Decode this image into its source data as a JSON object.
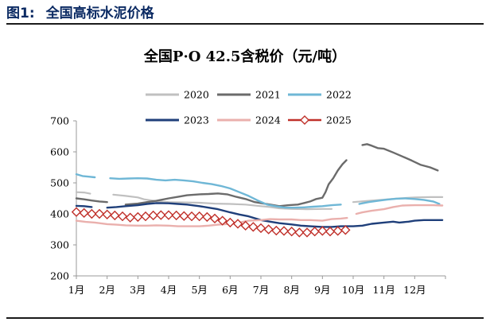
{
  "figure": {
    "number": "图1:",
    "caption": "全国高标水泥价格"
  },
  "chart_data": {
    "type": "line",
    "title": "全国P·O 42.5含税价（元/吨）",
    "xlabel": "",
    "ylabel": "",
    "ylim": [
      200,
      700
    ],
    "yticks": [
      200,
      300,
      400,
      500,
      600,
      700
    ],
    "xlim": [
      1,
      13
    ],
    "xticks": [
      {
        "label": "1月",
        "x": 1
      },
      {
        "label": "2月",
        "x": 2
      },
      {
        "label": "3月",
        "x": 3
      },
      {
        "label": "4月",
        "x": 4
      },
      {
        "label": "5月",
        "x": 5
      },
      {
        "label": "6月",
        "x": 6
      },
      {
        "label": "7月",
        "x": 7
      },
      {
        "label": "8月",
        "x": 8
      },
      {
        "label": "9月",
        "x": 9
      },
      {
        "label": "10月",
        "x": 10
      },
      {
        "label": "11月",
        "x": 11
      },
      {
        "label": "12月",
        "x": 12
      }
    ],
    "grid": false,
    "legend_position": "top",
    "series": [
      {
        "name": "2020",
        "color": "#c0c0c0",
        "width": 2.2,
        "marker": "none",
        "points": [
          [
            1.0,
            470
          ],
          [
            1.25,
            469
          ],
          [
            1.45,
            465
          ],
          [
            null,
            null
          ],
          [
            2.2,
            462
          ],
          [
            2.6,
            458
          ],
          [
            3.0,
            453
          ],
          [
            3.2,
            447
          ],
          [
            3.6,
            441
          ],
          [
            4.0,
            438
          ],
          [
            4.5,
            437
          ],
          [
            5.0,
            436
          ],
          [
            5.5,
            433
          ],
          [
            6.0,
            432
          ],
          [
            6.5,
            430
          ],
          [
            7.0,
            425
          ],
          [
            7.3,
            422
          ],
          [
            7.6,
            418
          ],
          [
            8.0,
            416
          ],
          [
            8.5,
            415
          ],
          [
            9.0,
            416
          ],
          [
            9.3,
            416
          ],
          [
            null,
            null
          ],
          [
            10.0,
            438
          ],
          [
            10.5,
            442
          ],
          [
            11.0,
            446
          ],
          [
            11.5,
            450
          ],
          [
            12.0,
            453
          ],
          [
            12.5,
            454
          ],
          [
            12.9,
            454
          ]
        ]
      },
      {
        "name": "2021",
        "color": "#6b6b6b",
        "width": 2.4,
        "marker": "none",
        "points": [
          [
            1.0,
            450
          ],
          [
            1.25,
            447
          ],
          [
            1.5,
            443
          ],
          [
            1.75,
            440
          ],
          [
            2.0,
            438
          ],
          [
            null,
            null
          ],
          [
            2.6,
            430
          ],
          [
            3.0,
            433
          ],
          [
            3.3,
            438
          ],
          [
            3.6,
            442
          ],
          [
            4.0,
            450
          ],
          [
            4.3,
            455
          ],
          [
            4.6,
            460
          ],
          [
            5.0,
            463
          ],
          [
            5.3,
            464
          ],
          [
            5.6,
            466
          ],
          [
            5.9,
            463
          ],
          [
            6.2,
            455
          ],
          [
            6.5,
            448
          ],
          [
            6.8,
            438
          ],
          [
            7.0,
            435
          ],
          [
            7.3,
            430
          ],
          [
            7.6,
            425
          ],
          [
            7.9,
            428
          ],
          [
            8.2,
            430
          ],
          [
            8.4,
            435
          ],
          [
            8.6,
            440
          ],
          [
            8.8,
            448
          ],
          [
            9.0,
            452
          ],
          [
            9.1,
            470
          ],
          [
            9.2,
            495
          ],
          [
            9.35,
            515
          ],
          [
            9.5,
            540
          ],
          [
            9.65,
            560
          ],
          [
            9.78,
            573
          ],
          [
            null,
            null
          ],
          [
            10.3,
            622
          ],
          [
            10.45,
            625
          ],
          [
            10.6,
            620
          ],
          [
            10.8,
            612
          ],
          [
            11.0,
            610
          ],
          [
            11.3,
            598
          ],
          [
            11.6,
            585
          ],
          [
            11.9,
            572
          ],
          [
            12.2,
            558
          ],
          [
            12.5,
            550
          ],
          [
            12.75,
            540
          ]
        ]
      },
      {
        "name": "2022",
        "color": "#6fb7d6",
        "width": 2.4,
        "marker": "none",
        "points": [
          [
            1.0,
            528
          ],
          [
            1.2,
            522
          ],
          [
            1.4,
            520
          ],
          [
            1.6,
            518
          ],
          [
            null,
            null
          ],
          [
            2.1,
            515
          ],
          [
            2.4,
            513
          ],
          [
            2.7,
            514
          ],
          [
            3.0,
            515
          ],
          [
            3.3,
            514
          ],
          [
            3.6,
            510
          ],
          [
            3.9,
            508
          ],
          [
            4.2,
            510
          ],
          [
            4.5,
            508
          ],
          [
            4.8,
            505
          ],
          [
            5.1,
            500
          ],
          [
            5.4,
            496
          ],
          [
            5.7,
            490
          ],
          [
            6.0,
            482
          ],
          [
            6.3,
            470
          ],
          [
            6.6,
            458
          ],
          [
            6.9,
            443
          ],
          [
            7.2,
            430
          ],
          [
            7.5,
            424
          ],
          [
            7.8,
            420
          ],
          [
            8.1,
            420
          ],
          [
            8.4,
            421
          ],
          [
            8.7,
            423
          ],
          [
            9.0,
            425
          ],
          [
            9.3,
            428
          ],
          [
            9.6,
            430
          ],
          [
            null,
            null
          ],
          [
            10.2,
            432
          ],
          [
            10.5,
            438
          ],
          [
            10.8,
            442
          ],
          [
            11.1,
            446
          ],
          [
            11.4,
            449
          ],
          [
            11.7,
            450
          ],
          [
            12.0,
            448
          ],
          [
            12.3,
            445
          ],
          [
            12.6,
            440
          ],
          [
            12.8,
            432
          ]
        ]
      },
      {
        "name": "2023",
        "color": "#1f3f7a",
        "width": 2.4,
        "marker": "none",
        "points": [
          [
            1.0,
            426
          ],
          [
            1.25,
            425
          ],
          [
            1.5,
            422
          ],
          [
            null,
            null
          ],
          [
            2.0,
            420
          ],
          [
            2.3,
            422
          ],
          [
            2.6,
            425
          ],
          [
            3.0,
            428
          ],
          [
            3.3,
            432
          ],
          [
            3.6,
            435
          ],
          [
            4.0,
            434
          ],
          [
            4.3,
            432
          ],
          [
            4.6,
            430
          ],
          [
            5.0,
            425
          ],
          [
            5.3,
            420
          ],
          [
            5.6,
            415
          ],
          [
            6.0,
            405
          ],
          [
            6.3,
            398
          ],
          [
            6.6,
            392
          ],
          [
            7.0,
            380
          ],
          [
            7.3,
            375
          ],
          [
            7.6,
            370
          ],
          [
            8.0,
            366
          ],
          [
            8.3,
            362
          ],
          [
            8.6,
            360
          ],
          [
            9.0,
            358
          ],
          [
            9.3,
            358
          ],
          [
            9.6,
            360
          ],
          [
            10.0,
            360
          ],
          [
            10.3,
            362
          ],
          [
            10.6,
            368
          ],
          [
            11.0,
            372
          ],
          [
            11.3,
            375
          ],
          [
            11.5,
            372
          ],
          [
            11.8,
            375
          ],
          [
            12.0,
            378
          ],
          [
            12.3,
            380
          ],
          [
            12.6,
            380
          ],
          [
            12.9,
            380
          ]
        ]
      },
      {
        "name": "2024",
        "color": "#eab0ad",
        "width": 2.4,
        "marker": "none",
        "points": [
          [
            1.0,
            378
          ],
          [
            1.3,
            374
          ],
          [
            1.6,
            372
          ],
          [
            2.0,
            367
          ],
          [
            2.3,
            365
          ],
          [
            2.6,
            363
          ],
          [
            3.0,
            362
          ],
          [
            3.3,
            362
          ],
          [
            3.6,
            363
          ],
          [
            4.0,
            362
          ],
          [
            4.3,
            360
          ],
          [
            4.6,
            360
          ],
          [
            5.0,
            360
          ],
          [
            5.3,
            362
          ],
          [
            5.6,
            365
          ],
          [
            6.0,
            368
          ],
          [
            6.3,
            372
          ],
          [
            6.6,
            378
          ],
          [
            7.0,
            380
          ],
          [
            7.3,
            383
          ],
          [
            7.6,
            382
          ],
          [
            8.0,
            382
          ],
          [
            8.3,
            380
          ],
          [
            8.6,
            380
          ],
          [
            9.0,
            378
          ],
          [
            9.3,
            383
          ],
          [
            9.6,
            385
          ],
          [
            9.8,
            387
          ],
          [
            null,
            null
          ],
          [
            10.1,
            400
          ],
          [
            10.3,
            405
          ],
          [
            10.6,
            410
          ],
          [
            11.0,
            415
          ],
          [
            11.3,
            422
          ],
          [
            11.6,
            427
          ],
          [
            12.0,
            428
          ],
          [
            12.3,
            428
          ],
          [
            12.6,
            428
          ],
          [
            12.9,
            427
          ]
        ]
      },
      {
        "name": "2025",
        "color": "#c0302a",
        "width": 1.6,
        "marker": "diamond",
        "points": [
          [
            1.0,
            406
          ],
          [
            1.25,
            403
          ],
          [
            1.5,
            400
          ],
          [
            1.75,
            400
          ],
          [
            2.0,
            398
          ],
          [
            2.25,
            395
          ],
          [
            2.5,
            392
          ],
          [
            2.75,
            388
          ],
          [
            3.0,
            390
          ],
          [
            3.25,
            392
          ],
          [
            3.5,
            395
          ],
          [
            3.75,
            396
          ],
          [
            4.0,
            396
          ],
          [
            4.25,
            395
          ],
          [
            4.5,
            393
          ],
          [
            4.75,
            392
          ],
          [
            5.0,
            392
          ],
          [
            5.25,
            390
          ],
          [
            5.5,
            385
          ],
          [
            5.75,
            378
          ],
          [
            6.0,
            372
          ],
          [
            6.25,
            368
          ],
          [
            6.5,
            362
          ],
          [
            6.75,
            358
          ],
          [
            7.0,
            354
          ],
          [
            7.25,
            350
          ],
          [
            7.5,
            346
          ],
          [
            7.75,
            345
          ],
          [
            8.0,
            343
          ],
          [
            8.25,
            340
          ],
          [
            8.5,
            340
          ],
          [
            8.75,
            343
          ],
          [
            9.0,
            345
          ],
          [
            9.25,
            343
          ],
          [
            9.5,
            345
          ],
          [
            9.75,
            348
          ]
        ]
      }
    ]
  }
}
